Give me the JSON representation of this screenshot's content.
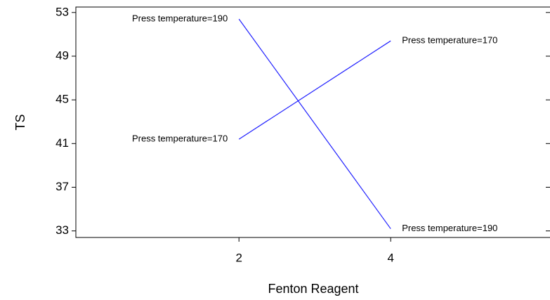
{
  "chart_data": {
    "type": "line",
    "xlabel": "Fenton Reagent",
    "ylabel": "TS",
    "x": [
      2,
      4
    ],
    "series": [
      {
        "name": "Press temperature=190",
        "color": "#2020ff",
        "values": [
          52.4,
          33.2
        ]
      },
      {
        "name": "Press temperature=170",
        "color": "#2020ff",
        "values": [
          41.4,
          50.4
        ]
      }
    ],
    "xlim": [
      -0.15,
      6.1
    ],
    "xticks": [
      2,
      4
    ],
    "ylim": [
      32.4,
      53.5
    ],
    "yticks": [
      33,
      37,
      41,
      45,
      49,
      53
    ]
  }
}
